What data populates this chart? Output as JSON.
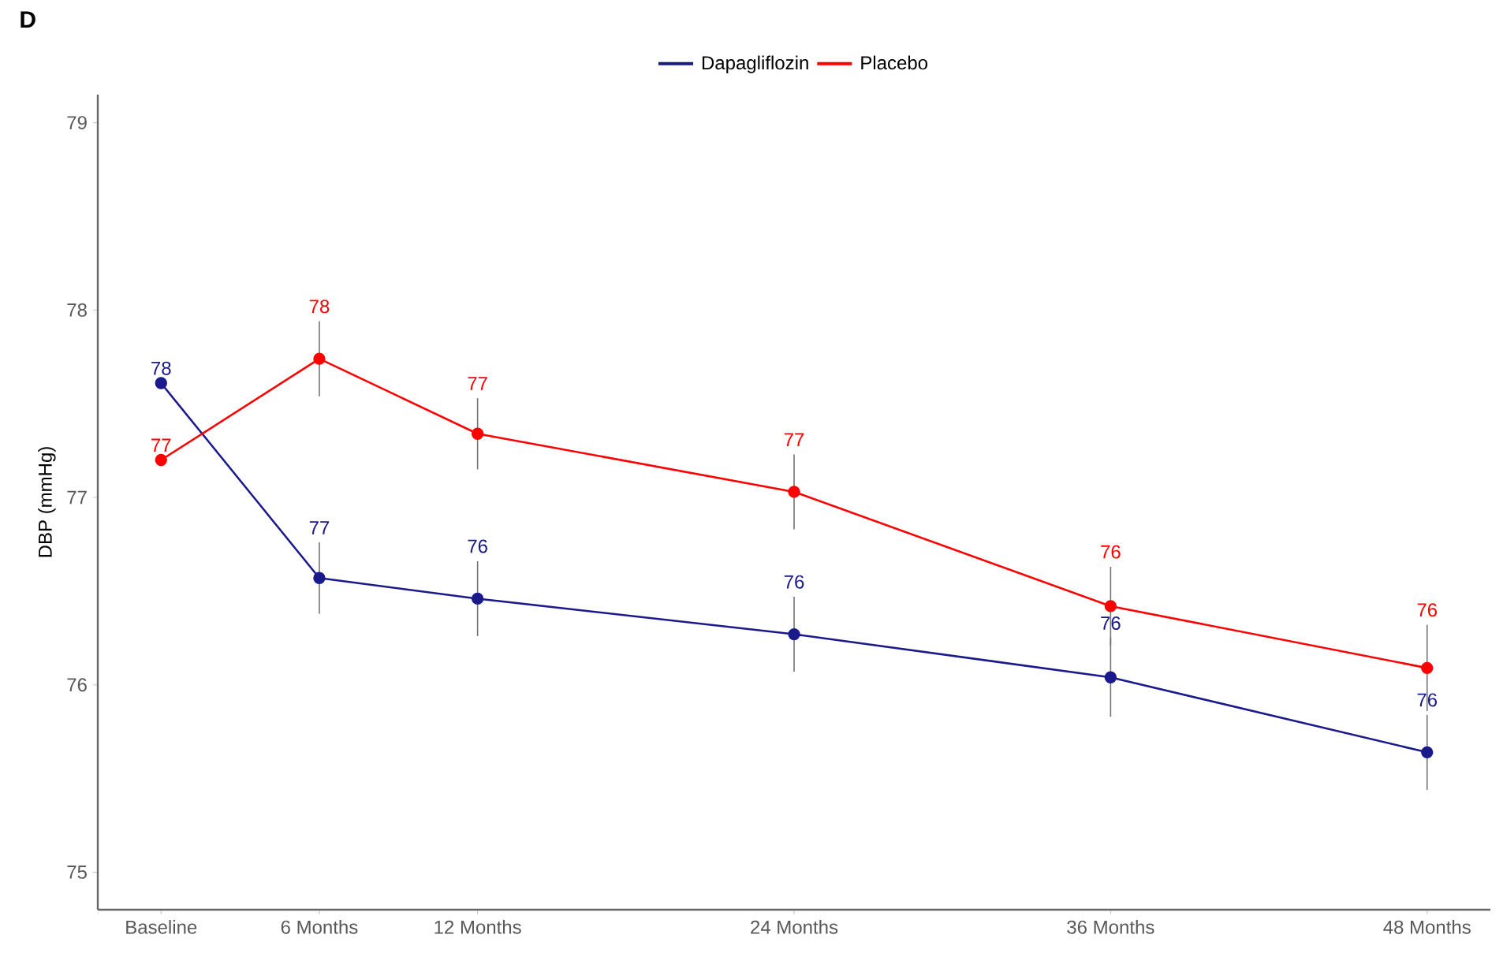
{
  "chart_data": {
    "type": "line",
    "title": "D",
    "ylabel": "DBP (mmHg)",
    "x": [
      0,
      6,
      12,
      24,
      36,
      48
    ],
    "xlim": [
      -2.4,
      50.4
    ],
    "ylim": [
      74.8,
      79.15
    ],
    "xticks": [
      {
        "value": 0,
        "label": "Baseline"
      },
      {
        "value": 6,
        "label": "6 Months"
      },
      {
        "value": 12,
        "label": "12 Months"
      },
      {
        "value": 24,
        "label": "24 Months"
      },
      {
        "value": 36,
        "label": "36 Months"
      },
      {
        "value": 48,
        "label": "48 Months"
      }
    ],
    "yticks": [
      75,
      76,
      77,
      78,
      79
    ],
    "grid": false,
    "legend": "top",
    "marker": "circle",
    "line_style": "solid",
    "series": [
      {
        "name": "Dapagliflozin",
        "color": "#1a1a8c",
        "values": [
          77.61,
          76.57,
          76.46,
          76.27,
          76.04,
          75.64
        ],
        "errors": [
          null,
          0.19,
          0.2,
          0.2,
          0.21,
          0.2
        ],
        "value_labels": [
          "78",
          "77",
          "76",
          "76",
          "76",
          "76"
        ]
      },
      {
        "name": "Placebo",
        "color": "#ff0000",
        "values": [
          77.2,
          77.74,
          77.34,
          77.03,
          76.42,
          76.09
        ],
        "errors": [
          null,
          0.2,
          0.19,
          0.2,
          0.21,
          0.23
        ],
        "value_labels": [
          "77",
          "78",
          "77",
          "77",
          "76",
          "76"
        ]
      }
    ]
  }
}
